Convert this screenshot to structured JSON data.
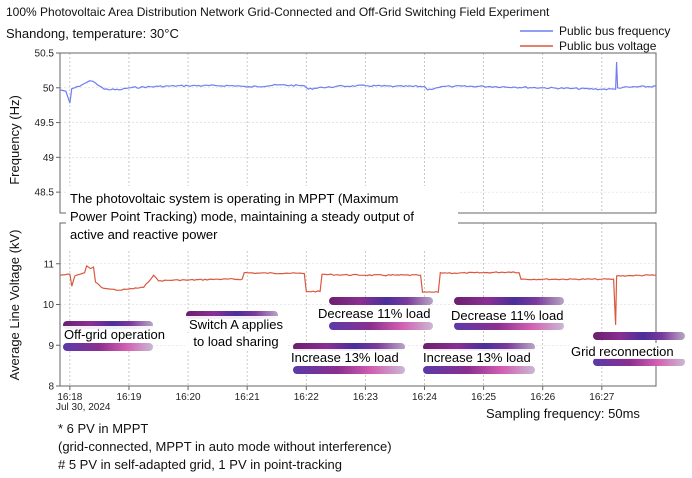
{
  "title": "100% Photovoltaic Area Distribution Network Grid-Connected and Off-Grid Switching Field Experiment",
  "subtitle": "Shandong, temperature: 30°C",
  "legend": [
    {
      "label": "Public bus frequency",
      "color": "#6f7ef0"
    },
    {
      "label": "Public bus voltage",
      "color": "#d9583f"
    }
  ],
  "date_label": "Jul 30, 2024",
  "sampling_label": "Sampling frequency: 50ms",
  "footnotes": [
    "* 6 PV in MPPT",
    "(grid-connected, MPPT in auto mode without interference)",
    "# 5 PV in self-adapted grid, 1 PV in point-tracking"
  ],
  "note_lines": [
    "The photovoltaic system is operating in MPPT (Maximum",
    "Power Point Tracking) mode, maintaining a steady output of",
    "active and reactive power"
  ],
  "callouts": [
    {
      "id": "off-grid",
      "label": "Off-grid operation",
      "lines": [
        "Off-grid operation"
      ]
    },
    {
      "id": "switch-a",
      "label": "Switch A applies to load sharing",
      "lines": [
        "Switch A applies",
        "to load sharing"
      ]
    },
    {
      "id": "inc-1",
      "label": "Increase 13% load",
      "lines": [
        "Increase 13% load"
      ]
    },
    {
      "id": "dec-1",
      "label": "Decrease 11% load",
      "lines": [
        "Decrease 11% load"
      ]
    },
    {
      "id": "inc-2",
      "label": "Increase 13% load",
      "lines": [
        "Increase 13% load"
      ]
    },
    {
      "id": "dec-2",
      "label": "Decrease 11% load",
      "lines": [
        "Decrease 11% load"
      ]
    },
    {
      "id": "reconnect",
      "label": "Grid reconnection",
      "lines": [
        "Grid reconnection"
      ]
    }
  ],
  "chart_data": [
    {
      "type": "line",
      "title": "100% Photovoltaic Area Distribution Network Grid-Connected and Off-Grid Switching Field Experiment",
      "ylabel": "Frequency (Hz)",
      "xlabel": "",
      "x_ticks": [
        "16:18",
        "16:19",
        "16:20",
        "16:21",
        "16:22",
        "16:23",
        "16:24",
        "16:25",
        "16:26",
        "16:27"
      ],
      "xlim": [
        "16:17:50",
        "16:27:55"
      ],
      "ylim": [
        48.2,
        50.5
      ],
      "y_ticks": [
        48.5,
        49,
        49.5,
        50,
        50.5
      ],
      "grid": true,
      "series": [
        {
          "name": "Public bus frequency",
          "color": "#6f7ef0",
          "points": [
            [
              "16:17:50",
              49.97
            ],
            [
              "16:17:56",
              49.95
            ],
            [
              "16:18:00",
              49.78
            ],
            [
              "16:18:02",
              49.99
            ],
            [
              "16:18:10",
              50.02
            ],
            [
              "16:18:20",
              50.1
            ],
            [
              "16:18:26",
              50.07
            ],
            [
              "16:18:35",
              49.98
            ],
            [
              "16:18:50",
              49.97
            ],
            [
              "16:19:00",
              50.0
            ],
            [
              "16:19:30",
              50.02
            ],
            [
              "16:20:00",
              50.03
            ],
            [
              "16:20:30",
              50.03
            ],
            [
              "16:20:50",
              50.03
            ],
            [
              "16:21:00",
              50.01
            ],
            [
              "16:21:30",
              50.04
            ],
            [
              "16:21:58",
              50.03
            ],
            [
              "16:22:02",
              49.98
            ],
            [
              "16:22:15",
              50.01
            ],
            [
              "16:22:18",
              50.0
            ],
            [
              "16:22:30",
              50.02
            ],
            [
              "16:23:00",
              50.03
            ],
            [
              "16:23:30",
              50.02
            ],
            [
              "16:24:00",
              50.02
            ],
            [
              "16:24:03",
              49.97
            ],
            [
              "16:24:12",
              50.0
            ],
            [
              "16:24:20",
              50.02
            ],
            [
              "16:24:30",
              50.02
            ],
            [
              "16:25:00",
              50.02
            ],
            [
              "16:25:30",
              50.01
            ],
            [
              "16:26:00",
              50.0
            ],
            [
              "16:26:30",
              49.99
            ],
            [
              "16:27:00",
              49.98
            ],
            [
              "16:27:14",
              49.98
            ],
            [
              "16:27:15",
              50.37
            ],
            [
              "16:27:16",
              50.0
            ],
            [
              "16:27:30",
              50.01
            ],
            [
              "16:27:55",
              50.02
            ]
          ]
        }
      ]
    },
    {
      "type": "line",
      "ylabel": "Average Line Voltage (kV)",
      "xlabel": "",
      "x_ticks": [
        "16:18",
        "16:19",
        "16:20",
        "16:21",
        "16:22",
        "16:23",
        "16:24",
        "16:25",
        "16:26",
        "16:27"
      ],
      "xlim": [
        "16:17:50",
        "16:27:55"
      ],
      "ylim": [
        8,
        12
      ],
      "y_ticks": [
        8,
        9,
        10,
        11
      ],
      "grid": true,
      "series": [
        {
          "name": "Public bus voltage",
          "color": "#d9583f",
          "points": [
            [
              "16:17:50",
              10.72
            ],
            [
              "16:18:00",
              10.74
            ],
            [
              "16:18:02",
              10.45
            ],
            [
              "16:18:05",
              10.7
            ],
            [
              "16:18:15",
              10.78
            ],
            [
              "16:18:17",
              10.95
            ],
            [
              "16:18:21",
              10.88
            ],
            [
              "16:18:24",
              10.92
            ],
            [
              "16:18:26",
              10.55
            ],
            [
              "16:18:32",
              10.42
            ],
            [
              "16:18:40",
              10.38
            ],
            [
              "16:18:50",
              10.35
            ],
            [
              "16:19:00",
              10.38
            ],
            [
              "16:19:15",
              10.42
            ],
            [
              "16:19:25",
              10.72
            ],
            [
              "16:19:30",
              10.58
            ],
            [
              "16:19:45",
              10.6
            ],
            [
              "16:20:00",
              10.6
            ],
            [
              "16:20:30",
              10.62
            ],
            [
              "16:20:55",
              10.62
            ],
            [
              "16:20:57",
              10.78
            ],
            [
              "16:21:10",
              10.77
            ],
            [
              "16:21:40",
              10.77
            ],
            [
              "16:21:58",
              10.76
            ],
            [
              "16:22:00",
              10.32
            ],
            [
              "16:22:14",
              10.32
            ],
            [
              "16:22:16",
              10.74
            ],
            [
              "16:22:30",
              10.73
            ],
            [
              "16:23:00",
              10.72
            ],
            [
              "16:23:30",
              10.72
            ],
            [
              "16:23:56",
              10.72
            ],
            [
              "16:23:58",
              10.3
            ],
            [
              "16:24:14",
              10.3
            ],
            [
              "16:24:16",
              10.78
            ],
            [
              "16:24:30",
              10.77
            ],
            [
              "16:25:00",
              10.78
            ],
            [
              "16:25:30",
              10.8
            ],
            [
              "16:25:36",
              10.78
            ],
            [
              "16:25:38",
              10.62
            ],
            [
              "16:26:00",
              10.62
            ],
            [
              "16:26:30",
              10.62
            ],
            [
              "16:27:00",
              10.62
            ],
            [
              "16:27:12",
              10.62
            ],
            [
              "16:27:14",
              9.5
            ],
            [
              "16:27:15",
              10.7
            ],
            [
              "16:27:30",
              10.71
            ],
            [
              "16:27:55",
              10.72
            ]
          ]
        }
      ]
    }
  ]
}
